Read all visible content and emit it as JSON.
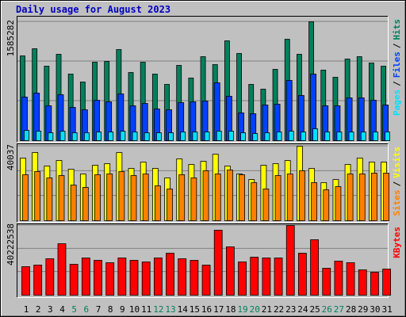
{
  "chart_data": [
    {
      "type": "bar",
      "title": "Daily usage for August 2023",
      "legend_separator": "/",
      "series": [
        {
          "name": "Hits",
          "color": "#00805c",
          "values": [
            1130800,
            1225900,
            993400,
            1151900,
            887700,
            782000,
            1046200,
            1056800,
            1215300,
            908800,
            1046200,
            887700,
            750300,
            1004000,
            834900,
            1120200,
            1014500,
            1331600,
            1162500,
            750300,
            686900,
            951100,
            1352700,
            1151900,
            1585282,
            940600,
            845400,
            1088500,
            1120200,
            1035700,
            993400
          ]
        },
        {
          "name": "Files",
          "color": "#0040ff",
          "values": [
            581200,
            634100,
            465000,
            612900,
            443900,
            412200,
            539000,
            517800,
            623500,
            465000,
            496700,
            422700,
            412200,
            507300,
            517800,
            528400,
            771500,
            591800,
            369900,
            359300,
            475600,
            486100,
            803200,
            602400,
            887700,
            465000,
            465000,
            570700,
            570700,
            539000,
            475600
          ]
        },
        {
          "name": "Pages",
          "color": "#00e0ff",
          "values": [
            137400,
            126800,
            105700,
            126800,
            105700,
            105700,
            116200,
            116200,
            126800,
            116200,
            105700,
            105700,
            105700,
            116200,
            116200,
            116200,
            126800,
            126800,
            105700,
            95100,
            105700,
            116200,
            126800,
            116200,
            158500,
            116200,
            116200,
            116200,
            116200,
            116200,
            116200
          ]
        }
      ],
      "ylim": [
        0,
        1585282
      ],
      "yticks": [
        {
          "value": 528427,
          "label": null
        },
        {
          "value": 1056855,
          "label": null
        },
        1585282
      ],
      "grid": true
    },
    {
      "type": "bar",
      "legend_separator": "/",
      "series": [
        {
          "name": "Visits",
          "color": "#ffff00",
          "values": [
            33650,
            36640,
            29390,
            32380,
            27690,
            25130,
            29820,
            30670,
            36640,
            28120,
            31520,
            28120,
            23000,
            33230,
            30250,
            31950,
            35780,
            29390,
            25130,
            22150,
            29820,
            30670,
            32380,
            40037,
            28120,
            20450,
            22150,
            30250,
            33650,
            31520,
            31520
          ]
        },
        {
          "name": "Sites",
          "color": "#ff8000",
          "values": [
            24710,
            26410,
            23000,
            24280,
            19170,
            17890,
            24710,
            25130,
            26410,
            24280,
            25130,
            18740,
            17040,
            24710,
            23000,
            26840,
            25130,
            27260,
            24710,
            20450,
            17040,
            24280,
            25130,
            26840,
            20450,
            16610,
            18320,
            25130,
            25130,
            25560,
            25560
          ]
        }
      ],
      "ylim": [
        0,
        40037
      ],
      "yticks": [
        {
          "value": 13346,
          "label": null
        },
        {
          "value": 26691,
          "label": null
        },
        40037
      ],
      "grid": true
    },
    {
      "type": "bar",
      "series": [
        {
          "name": "KBytes",
          "color": "#ff0000",
          "values": [
            16454500,
            17368700,
            21025200,
            29709600,
            17825700,
            21482300,
            20111100,
            18739900,
            21482300,
            20111100,
            19196900,
            21482300,
            24224700,
            21025200,
            20111100,
            17368700,
            37479700,
            27881300,
            19196900,
            21939400,
            21482300,
            21482300,
            40222538,
            24224700,
            31994900,
            15540400,
            19654000,
            18739900,
            14626200,
            13255000,
            15083300
          ]
        }
      ],
      "ylim": [
        0,
        40222538
      ],
      "yticks": [
        {
          "value": 13407513,
          "label": null
        },
        {
          "value": 26815025,
          "label": null
        },
        40222538
      ],
      "grid": true,
      "categories": [
        "1",
        "2",
        "3",
        "4",
        "5",
        "6",
        "7",
        "8",
        "9",
        "10",
        "11",
        "12",
        "13",
        "14",
        "15",
        "16",
        "17",
        "18",
        "19",
        "20",
        "21",
        "22",
        "23",
        "24",
        "25",
        "26",
        "27",
        "28",
        "29",
        "30",
        "31"
      ],
      "category_colors": [
        "#000000",
        "#000000",
        "#000000",
        "#000000",
        "#00805c",
        "#00805c",
        "#000000",
        "#000000",
        "#000000",
        "#000000",
        "#000000",
        "#00805c",
        "#00805c",
        "#000000",
        "#000000",
        "#000000",
        "#000000",
        "#000000",
        "#00805c",
        "#00805c",
        "#000000",
        "#000000",
        "#000000",
        "#000000",
        "#000000",
        "#00805c",
        "#00805c",
        "#000000",
        "#000000",
        "#000000",
        "#000000"
      ]
    }
  ]
}
